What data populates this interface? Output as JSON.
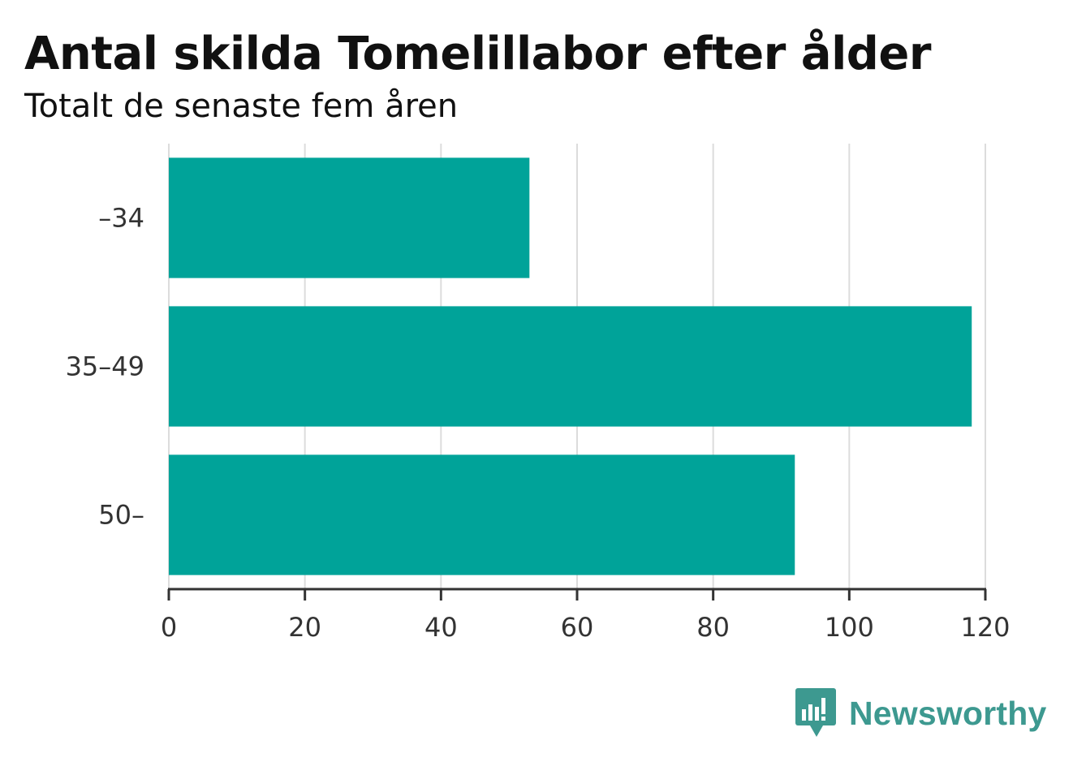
{
  "title": "Antal skilda Tomelillabor efter ålder",
  "subtitle": "Totalt de senaste fem åren",
  "brand": {
    "name": "Newsworthy",
    "icon": "newsworthy-logo-icon",
    "color": "#3d9990"
  },
  "chart_data": {
    "type": "bar",
    "orientation": "horizontal",
    "categories": [
      "–34",
      "35–49",
      "50–"
    ],
    "values": [
      53,
      118,
      92
    ],
    "bar_color": "#00a399",
    "xlim": [
      0,
      120
    ],
    "xticks": [
      0,
      20,
      40,
      60,
      80,
      100,
      120
    ],
    "grid": true,
    "title": "Antal skilda Tomelillabor efter ålder",
    "subtitle": "Totalt de senaste fem åren"
  }
}
